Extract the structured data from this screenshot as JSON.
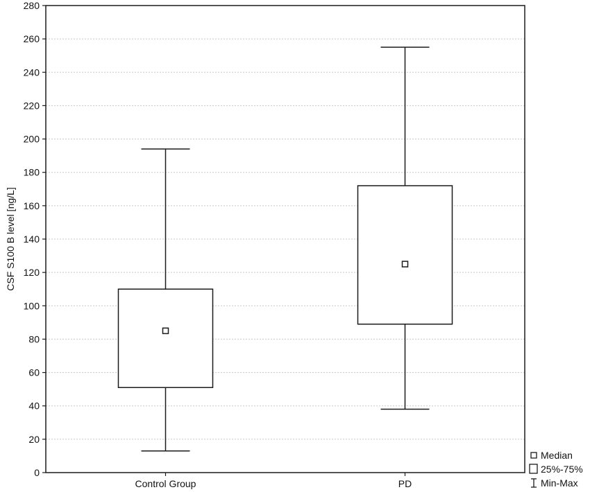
{
  "chart_data": {
    "type": "box",
    "ylabel": "CSF S100 B level [ng/L]",
    "xlabel": "",
    "ylim": [
      0,
      280
    ],
    "yticks": [
      0,
      20,
      40,
      60,
      80,
      100,
      120,
      140,
      160,
      180,
      200,
      220,
      240,
      260,
      280
    ],
    "grid": true,
    "categories": [
      "Control Group",
      "PD"
    ],
    "boxes": [
      {
        "category": "Control Group",
        "min": 13,
        "q1": 51,
        "median": 85,
        "q3": 110,
        "max": 194
      },
      {
        "category": "PD",
        "min": 38,
        "q1": 89,
        "median": 125,
        "q3": 172,
        "max": 255
      }
    ],
    "legend": {
      "position": "bottom-right",
      "items": [
        {
          "symbol": "median",
          "label": "Median"
        },
        {
          "symbol": "box",
          "label": "25%-75%"
        },
        {
          "symbol": "whisker",
          "label": "Min-Max"
        }
      ]
    },
    "colors": {
      "line": "#1a1a1a",
      "grid": "#c8c8c8",
      "background": "#ffffff"
    }
  }
}
